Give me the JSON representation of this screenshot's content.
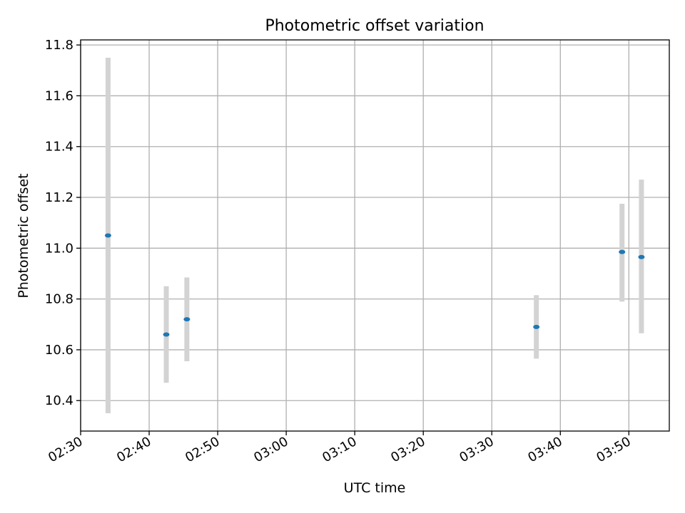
{
  "chart_data": {
    "type": "scatter",
    "title": "Photometric offset variation",
    "xlabel": "UTC time",
    "ylabel": "Photometric offset",
    "x_ticks": [
      "02:30",
      "02:40",
      "02:50",
      "03:00",
      "03:10",
      "03:20",
      "03:30",
      "03:40",
      "03:50"
    ],
    "x_tick_minutes": [
      150,
      160,
      170,
      180,
      190,
      200,
      210,
      220,
      230
    ],
    "xlim_minutes": [
      150,
      235.9
    ],
    "ylim": [
      10.28,
      11.82
    ],
    "y_ticks": [
      10.4,
      10.6,
      10.8,
      11.0,
      11.2,
      11.4,
      11.6,
      11.8
    ],
    "y_tick_labels": [
      "10.4",
      "10.6",
      "10.8",
      "11.0",
      "11.2",
      "11.4",
      "11.6",
      "11.8"
    ],
    "grid": true,
    "series": [
      {
        "points": [
          {
            "time": "02:34",
            "y": 11.05,
            "ylow": 10.35,
            "yhigh": 11.75
          },
          {
            "time": "02:42:30",
            "y": 10.66,
            "ylow": 10.47,
            "yhigh": 10.85
          },
          {
            "time": "02:45:30",
            "y": 10.72,
            "ylow": 10.555,
            "yhigh": 10.885
          },
          {
            "time": "03:36:30",
            "y": 10.69,
            "ylow": 10.565,
            "yhigh": 10.815
          },
          {
            "time": "03:49",
            "y": 10.985,
            "ylow": 10.79,
            "yhigh": 11.175
          },
          {
            "time": "03:51:50",
            "y": 10.965,
            "ylow": 10.665,
            "yhigh": 11.27
          }
        ]
      }
    ],
    "marker_color": "#1f77b4",
    "errorbar_color": "#d3d3d3",
    "grid_color": "#b0b0b0"
  }
}
